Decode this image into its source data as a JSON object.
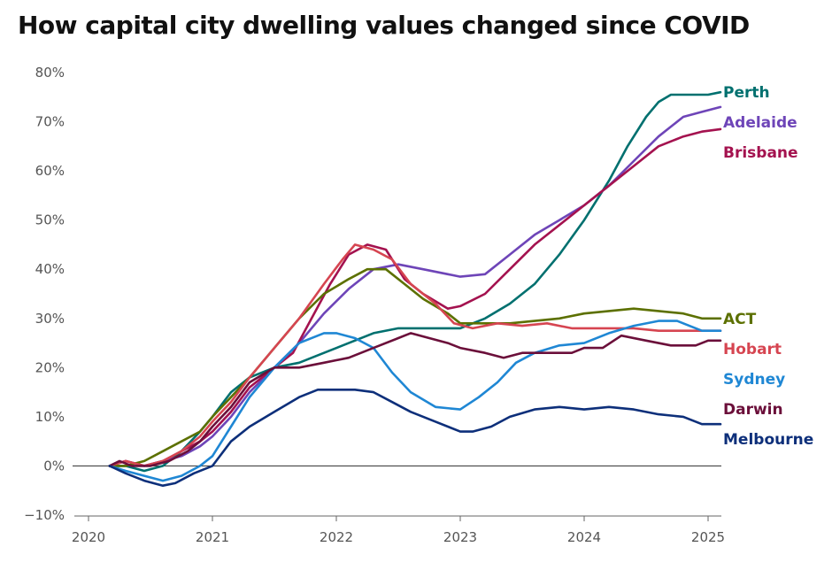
{
  "chart_data": {
    "type": "line",
    "title": "How capital city dwelling values changed since COVID",
    "xlabel": "",
    "ylabel": "",
    "xlim": [
      2020,
      2025.22
    ],
    "ylim": [
      -10,
      80
    ],
    "x_ticks": [
      2020,
      2021,
      2022,
      2023,
      2024,
      2025
    ],
    "x_tick_labels": [
      "2020",
      "2021",
      "2022",
      "2023",
      "2024",
      "2025"
    ],
    "y_ticks": [
      -10,
      0,
      10,
      20,
      30,
      40,
      50,
      60,
      70,
      80
    ],
    "y_tick_labels": [
      "−10%",
      "0%",
      "10%",
      "20%",
      "30%",
      "40%",
      "50%",
      "60%",
      "70%",
      "80%"
    ],
    "grid": false,
    "legend": "direct labels at line ends (right)",
    "series": [
      {
        "name": "Perth",
        "color": "#00706f",
        "points": [
          [
            2020.17,
            0
          ],
          [
            2020.3,
            0
          ],
          [
            2020.45,
            -1
          ],
          [
            2020.6,
            0
          ],
          [
            2020.75,
            3
          ],
          [
            2020.9,
            7
          ],
          [
            2021.0,
            10
          ],
          [
            2021.15,
            15
          ],
          [
            2021.3,
            18
          ],
          [
            2021.5,
            20
          ],
          [
            2021.7,
            21
          ],
          [
            2021.9,
            23
          ],
          [
            2022.1,
            25
          ],
          [
            2022.3,
            27
          ],
          [
            2022.5,
            28
          ],
          [
            2022.7,
            28
          ],
          [
            2022.9,
            28
          ],
          [
            2023.0,
            28
          ],
          [
            2023.2,
            30
          ],
          [
            2023.4,
            33
          ],
          [
            2023.6,
            37
          ],
          [
            2023.8,
            43
          ],
          [
            2024.0,
            50
          ],
          [
            2024.2,
            58
          ],
          [
            2024.35,
            65
          ],
          [
            2024.5,
            71
          ],
          [
            2024.6,
            74
          ],
          [
            2024.7,
            75.5
          ],
          [
            2024.85,
            75.5
          ],
          [
            2025.0,
            75.5
          ],
          [
            2025.1,
            76
          ]
        ]
      },
      {
        "name": "Adelaide",
        "color": "#6e45b8",
        "points": [
          [
            2020.17,
            0
          ],
          [
            2020.3,
            1
          ],
          [
            2020.45,
            0
          ],
          [
            2020.6,
            1
          ],
          [
            2020.75,
            2
          ],
          [
            2020.9,
            4
          ],
          [
            2021.0,
            6
          ],
          [
            2021.15,
            10
          ],
          [
            2021.3,
            15
          ],
          [
            2021.5,
            20
          ],
          [
            2021.7,
            25
          ],
          [
            2021.9,
            31
          ],
          [
            2022.1,
            36
          ],
          [
            2022.3,
            40
          ],
          [
            2022.5,
            41
          ],
          [
            2022.7,
            40
          ],
          [
            2022.9,
            39
          ],
          [
            2023.0,
            38.5
          ],
          [
            2023.2,
            39
          ],
          [
            2023.4,
            43
          ],
          [
            2023.6,
            47
          ],
          [
            2023.8,
            50
          ],
          [
            2024.0,
            53
          ],
          [
            2024.2,
            57
          ],
          [
            2024.4,
            62
          ],
          [
            2024.6,
            67
          ],
          [
            2024.8,
            71
          ],
          [
            2024.95,
            72
          ],
          [
            2025.1,
            73
          ]
        ]
      },
      {
        "name": "Brisbane",
        "color": "#a4124f",
        "points": [
          [
            2020.17,
            0
          ],
          [
            2020.3,
            1
          ],
          [
            2020.45,
            0
          ],
          [
            2020.6,
            1
          ],
          [
            2020.75,
            3
          ],
          [
            2020.9,
            5
          ],
          [
            2021.0,
            7
          ],
          [
            2021.15,
            11
          ],
          [
            2021.3,
            16
          ],
          [
            2021.5,
            20
          ],
          [
            2021.65,
            23
          ],
          [
            2021.8,
            30
          ],
          [
            2021.95,
            37
          ],
          [
            2022.1,
            43
          ],
          [
            2022.25,
            45
          ],
          [
            2022.4,
            44
          ],
          [
            2022.55,
            38
          ],
          [
            2022.7,
            35
          ],
          [
            2022.9,
            32
          ],
          [
            2023.0,
            32.5
          ],
          [
            2023.2,
            35
          ],
          [
            2023.4,
            40
          ],
          [
            2023.6,
            45
          ],
          [
            2023.8,
            49
          ],
          [
            2024.0,
            53
          ],
          [
            2024.2,
            57
          ],
          [
            2024.4,
            61
          ],
          [
            2024.6,
            65
          ],
          [
            2024.8,
            67
          ],
          [
            2024.95,
            68
          ],
          [
            2025.1,
            68.5
          ]
        ]
      },
      {
        "name": "ACT",
        "color": "#5c7000",
        "points": [
          [
            2020.17,
            0
          ],
          [
            2020.3,
            0
          ],
          [
            2020.45,
            1
          ],
          [
            2020.6,
            3
          ],
          [
            2020.75,
            5
          ],
          [
            2020.9,
            7
          ],
          [
            2021.0,
            10
          ],
          [
            2021.15,
            14
          ],
          [
            2021.3,
            18
          ],
          [
            2021.5,
            24
          ],
          [
            2021.7,
            30
          ],
          [
            2021.9,
            35
          ],
          [
            2022.1,
            38
          ],
          [
            2022.25,
            40
          ],
          [
            2022.4,
            40
          ],
          [
            2022.55,
            37
          ],
          [
            2022.7,
            34
          ],
          [
            2022.9,
            31
          ],
          [
            2023.0,
            29
          ],
          [
            2023.2,
            29
          ],
          [
            2023.4,
            29
          ],
          [
            2023.6,
            29.5
          ],
          [
            2023.8,
            30
          ],
          [
            2024.0,
            31
          ],
          [
            2024.2,
            31.5
          ],
          [
            2024.4,
            32
          ],
          [
            2024.6,
            31.5
          ],
          [
            2024.8,
            31
          ],
          [
            2024.95,
            30
          ],
          [
            2025.1,
            30
          ]
        ]
      },
      {
        "name": "Hobart",
        "color": "#d64551",
        "points": [
          [
            2020.17,
            0
          ],
          [
            2020.3,
            1
          ],
          [
            2020.45,
            0
          ],
          [
            2020.6,
            1
          ],
          [
            2020.75,
            3
          ],
          [
            2020.9,
            6
          ],
          [
            2021.0,
            9
          ],
          [
            2021.15,
            13
          ],
          [
            2021.3,
            18
          ],
          [
            2021.5,
            24
          ],
          [
            2021.7,
            30
          ],
          [
            2021.9,
            37
          ],
          [
            2022.05,
            42
          ],
          [
            2022.15,
            45
          ],
          [
            2022.3,
            44
          ],
          [
            2022.45,
            42
          ],
          [
            2022.6,
            37
          ],
          [
            2022.8,
            33
          ],
          [
            2022.95,
            29
          ],
          [
            2023.1,
            28
          ],
          [
            2023.3,
            29
          ],
          [
            2023.5,
            28.5
          ],
          [
            2023.7,
            29
          ],
          [
            2023.9,
            28
          ],
          [
            2024.0,
            28
          ],
          [
            2024.2,
            28
          ],
          [
            2024.4,
            28
          ],
          [
            2024.6,
            27.5
          ],
          [
            2024.8,
            27.5
          ],
          [
            2024.95,
            27.5
          ],
          [
            2025.1,
            27.5
          ]
        ]
      },
      {
        "name": "Sydney",
        "color": "#1f87d4",
        "points": [
          [
            2020.17,
            0
          ],
          [
            2020.3,
            -1
          ],
          [
            2020.45,
            -2
          ],
          [
            2020.6,
            -3
          ],
          [
            2020.75,
            -2
          ],
          [
            2020.9,
            0
          ],
          [
            2021.0,
            2
          ],
          [
            2021.15,
            8
          ],
          [
            2021.3,
            14
          ],
          [
            2021.5,
            20
          ],
          [
            2021.7,
            25
          ],
          [
            2021.9,
            27
          ],
          [
            2022.0,
            27
          ],
          [
            2022.15,
            26
          ],
          [
            2022.3,
            24
          ],
          [
            2022.45,
            19
          ],
          [
            2022.6,
            15
          ],
          [
            2022.8,
            12
          ],
          [
            2023.0,
            11.5
          ],
          [
            2023.15,
            14
          ],
          [
            2023.3,
            17
          ],
          [
            2023.45,
            21
          ],
          [
            2023.6,
            23
          ],
          [
            2023.8,
            24.5
          ],
          [
            2024.0,
            25
          ],
          [
            2024.2,
            27
          ],
          [
            2024.4,
            28.5
          ],
          [
            2024.6,
            29.5
          ],
          [
            2024.75,
            29.5
          ],
          [
            2024.95,
            27.5
          ],
          [
            2025.1,
            27.5
          ]
        ]
      },
      {
        "name": "Darwin",
        "color": "#6b0f3a",
        "points": [
          [
            2020.17,
            0
          ],
          [
            2020.25,
            1
          ],
          [
            2020.35,
            0
          ],
          [
            2020.5,
            0
          ],
          [
            2020.65,
            1
          ],
          [
            2020.8,
            3
          ],
          [
            2020.9,
            5
          ],
          [
            2021.0,
            8
          ],
          [
            2021.15,
            12
          ],
          [
            2021.3,
            17
          ],
          [
            2021.5,
            20
          ],
          [
            2021.7,
            20
          ],
          [
            2021.9,
            21
          ],
          [
            2022.1,
            22
          ],
          [
            2022.3,
            24
          ],
          [
            2022.5,
            26
          ],
          [
            2022.6,
            27
          ],
          [
            2022.75,
            26
          ],
          [
            2022.9,
            25
          ],
          [
            2023.0,
            24
          ],
          [
            2023.2,
            23
          ],
          [
            2023.35,
            22
          ],
          [
            2023.5,
            23
          ],
          [
            2023.7,
            23
          ],
          [
            2023.9,
            23
          ],
          [
            2024.0,
            24
          ],
          [
            2024.15,
            24
          ],
          [
            2024.3,
            26.5
          ],
          [
            2024.5,
            25.5
          ],
          [
            2024.7,
            24.5
          ],
          [
            2024.9,
            24.5
          ],
          [
            2025.0,
            25.5
          ],
          [
            2025.1,
            25.5
          ]
        ]
      },
      {
        "name": "Melbourne",
        "color": "#0d2f7a",
        "points": [
          [
            2020.17,
            0
          ],
          [
            2020.3,
            -1.5
          ],
          [
            2020.45,
            -3
          ],
          [
            2020.6,
            -4
          ],
          [
            2020.7,
            -3.5
          ],
          [
            2020.85,
            -1.5
          ],
          [
            2021.0,
            0
          ],
          [
            2021.15,
            5
          ],
          [
            2021.3,
            8
          ],
          [
            2021.5,
            11
          ],
          [
            2021.7,
            14
          ],
          [
            2021.85,
            15.5
          ],
          [
            2022.0,
            15.5
          ],
          [
            2022.15,
            15.5
          ],
          [
            2022.3,
            15
          ],
          [
            2022.45,
            13
          ],
          [
            2022.6,
            11
          ],
          [
            2022.8,
            9
          ],
          [
            2023.0,
            7
          ],
          [
            2023.1,
            7
          ],
          [
            2023.25,
            8
          ],
          [
            2023.4,
            10
          ],
          [
            2023.6,
            11.5
          ],
          [
            2023.8,
            12
          ],
          [
            2024.0,
            11.5
          ],
          [
            2024.2,
            12
          ],
          [
            2024.4,
            11.5
          ],
          [
            2024.6,
            10.5
          ],
          [
            2024.8,
            10
          ],
          [
            2024.95,
            8.5
          ],
          [
            2025.1,
            8.5
          ]
        ]
      }
    ]
  }
}
